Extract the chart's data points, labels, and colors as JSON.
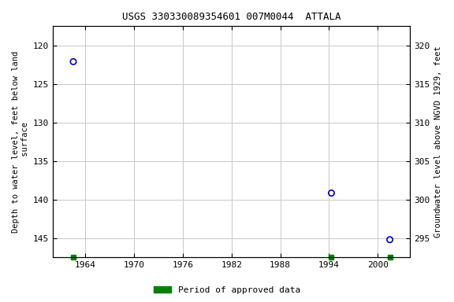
{
  "title": "USGS 330330089354601 007M0044  ATTALA",
  "ylabel_left": "Depth to water level, feet below land\n surface",
  "ylabel_right": "Groundwater level above NGVD 1929, feet",
  "data_points": [
    {
      "year": 1962.5,
      "depth": 122.1
    },
    {
      "year": 1994.3,
      "depth": 139.15
    },
    {
      "year": 2001.5,
      "depth": 145.2
    }
  ],
  "approved_periods": [
    1962.5,
    1994.3,
    2001.5
  ],
  "xlim": [
    1960,
    2004
  ],
  "xticks": [
    1964,
    1970,
    1976,
    1982,
    1988,
    1994,
    2000
  ],
  "ylim_left": [
    147.5,
    117.5
  ],
  "ylim_right_top": 322.5,
  "ylim_right_bottom": 292.5,
  "yticks_left": [
    120,
    125,
    130,
    135,
    140,
    145
  ],
  "yticks_right": [
    320,
    315,
    310,
    305,
    300,
    295
  ],
  "marker_color": "#0000cc",
  "approved_color": "#008000",
  "grid_color": "#c8c8c8",
  "bg_color": "#ffffff",
  "font_color": "#000000",
  "title_fontsize": 9,
  "label_fontsize": 7.5,
  "tick_fontsize": 8,
  "legend_fontsize": 8
}
